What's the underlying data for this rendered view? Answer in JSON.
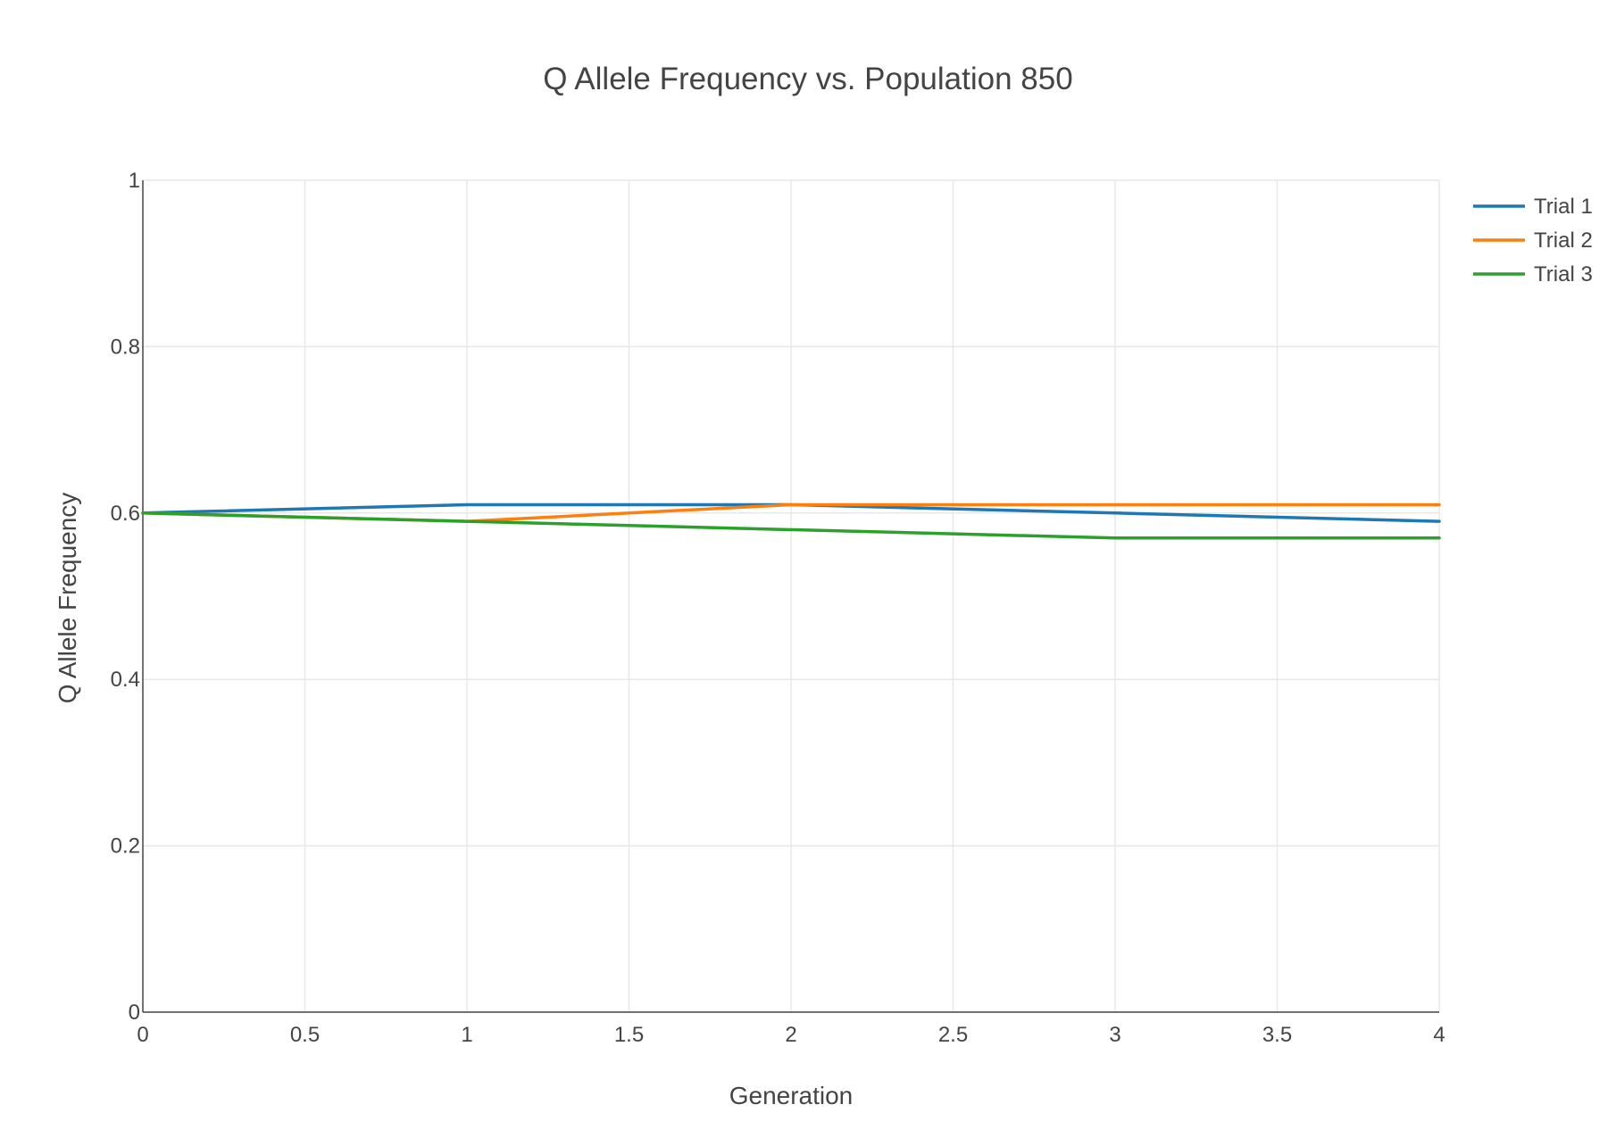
{
  "chart_data": {
    "type": "line",
    "title": "Q Allele Frequency vs. Population 850",
    "xlabel": "Generation",
    "ylabel": "Q Allele Frequency",
    "xlim": [
      0,
      4
    ],
    "ylim": [
      0,
      1
    ],
    "x": [
      0,
      1,
      2,
      3,
      4
    ],
    "x_ticks": [
      0,
      0.5,
      1,
      1.5,
      2,
      2.5,
      3,
      3.5,
      4
    ],
    "x_tick_labels": [
      "0",
      "0.5",
      "1",
      "1.5",
      "2",
      "2.5",
      "3",
      "3.5",
      "4"
    ],
    "y_ticks": [
      0,
      0.2,
      0.4,
      0.6,
      0.8,
      1
    ],
    "y_tick_labels": [
      "0",
      "0.2",
      "0.4",
      "0.6",
      "0.8",
      "1"
    ],
    "grid": true,
    "legend_position": "top-right",
    "series": [
      {
        "name": "Trial 1",
        "color": "#1f77b4",
        "values": [
          0.6,
          0.61,
          0.61,
          0.6,
          0.59
        ]
      },
      {
        "name": "Trial 2",
        "color": "#ff7f0e",
        "values": [
          0.6,
          0.59,
          0.61,
          0.61,
          0.61
        ]
      },
      {
        "name": "Trial 3",
        "color": "#2ca02c",
        "values": [
          0.6,
          0.59,
          0.58,
          0.57,
          0.57
        ]
      }
    ]
  }
}
